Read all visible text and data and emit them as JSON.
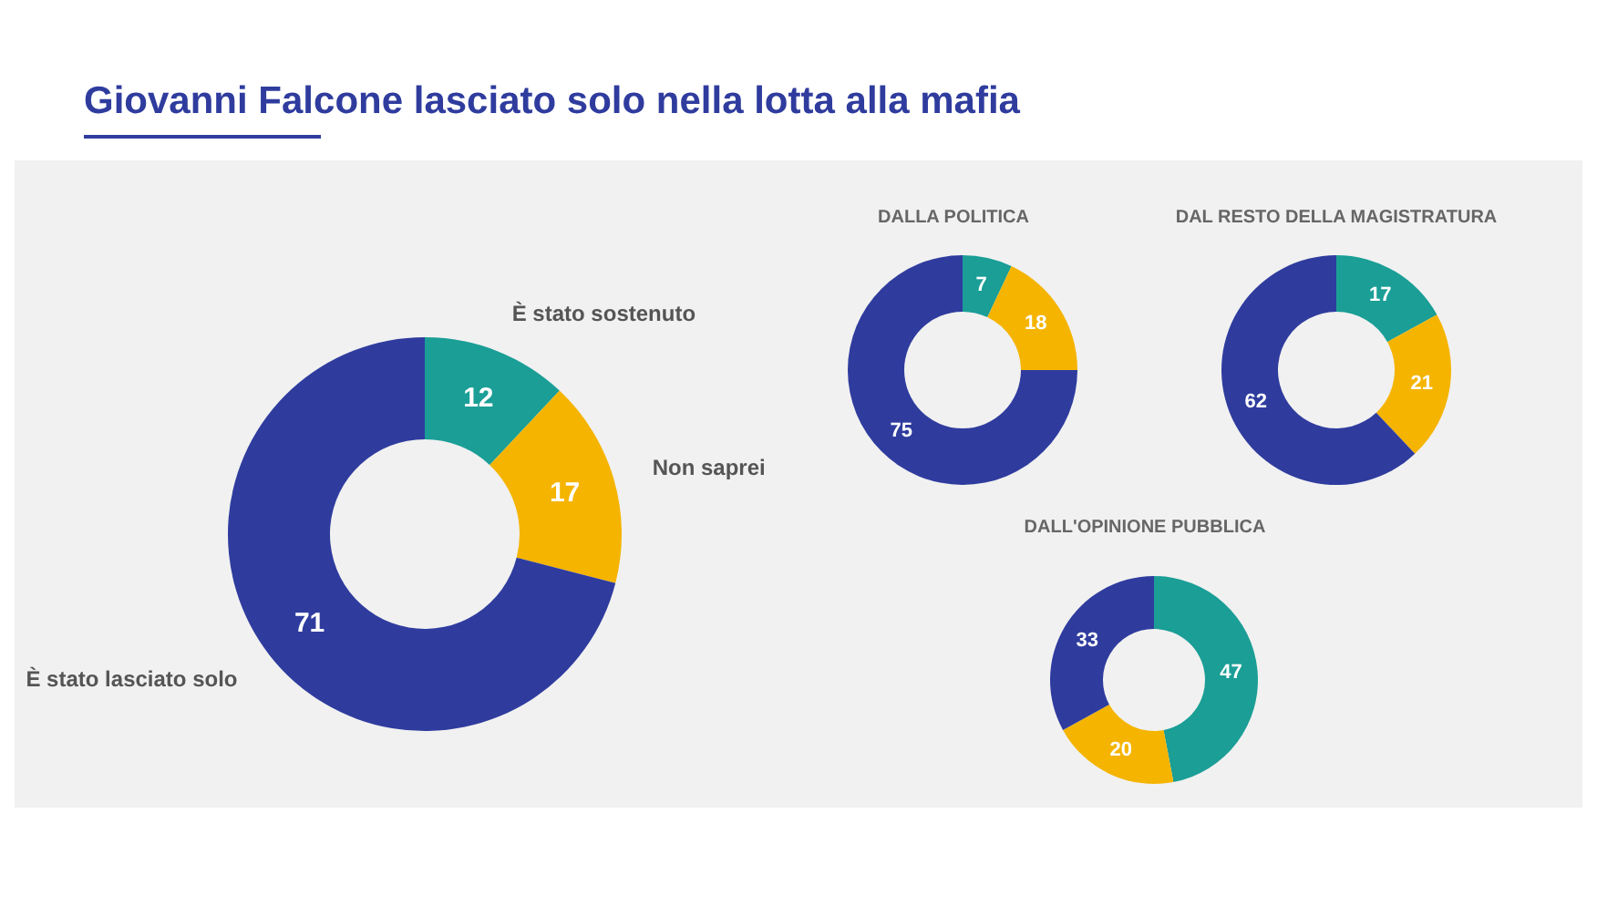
{
  "chart_data": [
    {
      "type": "donut",
      "title": "Giovanni Falcone lasciato solo nella lotta alla mafia",
      "categories": [
        "È stato sostenuto",
        "Non saprei",
        "È stato lasciato solo"
      ],
      "values": [
        12,
        17,
        71
      ],
      "colors": [
        "#1a9e96",
        "#f5b400",
        "#2f3c9e"
      ],
      "data_labels": true
    },
    {
      "type": "donut",
      "title": "DALLA POLITICA",
      "categories": [
        null,
        null,
        null
      ],
      "values": [
        7,
        18,
        75
      ],
      "colors": [
        "#1a9e96",
        "#f5b400",
        "#2f3c9e"
      ],
      "data_labels": true
    },
    {
      "type": "donut",
      "title": "DAL RESTO DELLA MAGISTRATURA",
      "categories": [
        null,
        null,
        null
      ],
      "values": [
        17,
        21,
        62
      ],
      "colors": [
        "#1a9e96",
        "#f5b400",
        "#2f3c9e"
      ],
      "data_labels": true
    },
    {
      "type": "donut",
      "title": "DALL'OPINIONE PUBBLICA",
      "categories": [
        null,
        null,
        null
      ],
      "values": [
        47,
        20,
        33
      ],
      "colors": [
        "#1a9e96",
        "#f5b400",
        "#2f3c9e"
      ],
      "data_labels": true
    }
  ]
}
